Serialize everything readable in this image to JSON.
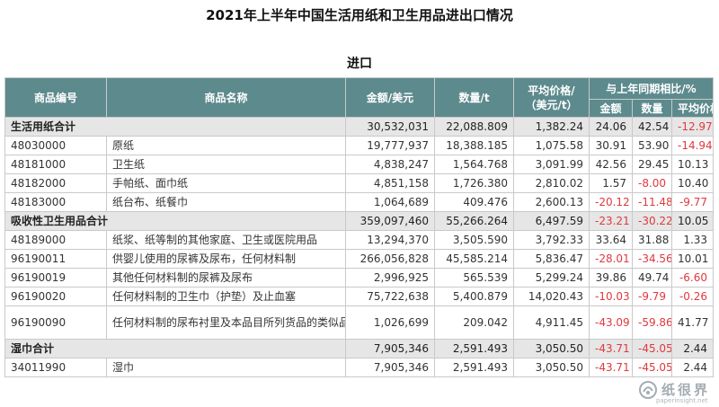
{
  "title": "2021年上半年中国生活用纸和卫生用品进出口情况",
  "subtitle": "进口",
  "headers": {
    "code": "商品编号",
    "name": "商品名称",
    "amount": "金额/美元",
    "quantity": "数量/t",
    "avg_price": "平均价格/（美元/t）",
    "yoy_group": "与上年同期相比/%",
    "yoy_amount": "金额",
    "yoy_quantity": "数量",
    "yoy_price": "平均价格"
  },
  "rows": [
    {
      "code": "生活用纸合计",
      "name": "",
      "amount": "30,532,031",
      "quantity": "22,088.809",
      "avg_price": "1,382.24",
      "yoy_amount": "24.06",
      "yoy_quantity": "42.54",
      "yoy_price": "-12.97",
      "total": true
    },
    {
      "code": "48030000",
      "name": "原纸",
      "amount": "19,777,937",
      "quantity": "18,388.185",
      "avg_price": "1,075.58",
      "yoy_amount": "30.91",
      "yoy_quantity": "53.90",
      "yoy_price": "-14.94"
    },
    {
      "code": "48181000",
      "name": "卫生纸",
      "amount": "4,838,247",
      "quantity": "1,564.768",
      "avg_price": "3,091.99",
      "yoy_amount": "42.56",
      "yoy_quantity": "29.45",
      "yoy_price": "10.13"
    },
    {
      "code": "48182000",
      "name": "手帕纸、面巾纸",
      "amount": "4,851,158",
      "quantity": "1,726.380",
      "avg_price": "2,810.02",
      "yoy_amount": "1.57",
      "yoy_quantity": "-8.00",
      "yoy_price": "10.40"
    },
    {
      "code": "48183000",
      "name": "纸台布、纸餐巾",
      "amount": "1,064,689",
      "quantity": "409.476",
      "avg_price": "2,600.13",
      "yoy_amount": "-20.12",
      "yoy_quantity": "-11.48",
      "yoy_price": "-9.77"
    },
    {
      "code": "吸收性卫生用品合计",
      "name": "",
      "amount": "359,097,460",
      "quantity": "55,266.264",
      "avg_price": "6,497.59",
      "yoy_amount": "-23.21",
      "yoy_quantity": "-30.22",
      "yoy_price": "10.05",
      "total": true
    },
    {
      "code": "48189000",
      "name": "纸浆、纸等制的其他家庭、卫生或医院用品",
      "amount": "13,294,370",
      "quantity": "3,505.590",
      "avg_price": "3,792.33",
      "yoy_amount": "33.64",
      "yoy_quantity": "31.88",
      "yoy_price": "1.33"
    },
    {
      "code": "96190011",
      "name": "供婴儿使用的尿裤及尿布，任何材料制",
      "amount": "266,056,828",
      "quantity": "45,585.214",
      "avg_price": "5,836.47",
      "yoy_amount": "-28.01",
      "yoy_quantity": "-34.56",
      "yoy_price": "10.01"
    },
    {
      "code": "96190019",
      "name": "其他任何材料制的尿裤及尿布",
      "amount": "2,996,925",
      "quantity": "565.539",
      "avg_price": "5,299.24",
      "yoy_amount": "39.86",
      "yoy_quantity": "49.74",
      "yoy_price": "-6.60"
    },
    {
      "code": "96190020",
      "name": "任何材料制的卫生巾（护垫）及止血塞",
      "amount": "75,722,638",
      "quantity": "5,400.879",
      "avg_price": "14,020.43",
      "yoy_amount": "-10.03",
      "yoy_quantity": "-9.79",
      "yoy_price": "-0.26"
    },
    {
      "code": "96190090",
      "name": "任何材料制的尿布衬里及本品目所列货品的类似品",
      "amount": "1,026,699",
      "quantity": "209.042",
      "avg_price": "4,911.45",
      "yoy_amount": "-43.09",
      "yoy_quantity": "-59.86",
      "yoy_price": "41.77",
      "tall": true
    },
    {
      "code": "湿巾合计",
      "name": "",
      "amount": "7,905,346",
      "quantity": "2,591.493",
      "avg_price": "3,050.50",
      "yoy_amount": "-43.71",
      "yoy_quantity": "-45.05",
      "yoy_price": "2.44",
      "total": true
    },
    {
      "code": "34011990",
      "name": "湿巾",
      "amount": "7,905,346",
      "quantity": "2,591.493",
      "avg_price": "3,050.50",
      "yoy_amount": "-43.71",
      "yoy_quantity": "-45.05",
      "yoy_price": "2.44"
    }
  ],
  "watermark": {
    "text": "纸很界",
    "url": "paperinsight.net",
    "icon": "paper-insight-logo-icon"
  },
  "colors": {
    "header_bg": "#5d8a8d",
    "total_bg": "#e6e6e6",
    "negative": "#e0393e"
  }
}
